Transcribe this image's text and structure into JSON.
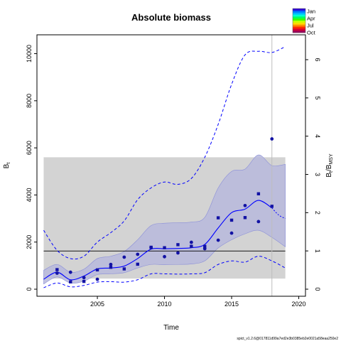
{
  "chart_data": {
    "type": "line",
    "title": "Absolute biomass",
    "xlabel": "Time",
    "ylabel_left": "B_t",
    "ylabel_right": "B_t/B_MSY",
    "xlim": [
      2000.5,
      2020.5
    ],
    "ylim_left": [
      -300,
      10800
    ],
    "ylim_right": [
      -0.185,
      6.65
    ],
    "x_ticks": [
      "2005",
      "2010",
      "2015",
      "2020"
    ],
    "y_ticks_left": [
      "0",
      "2000",
      "4000",
      "6000",
      "8000",
      "10000"
    ],
    "y_ticks_right": [
      "0",
      "1",
      "2",
      "3",
      "4",
      "5",
      "6"
    ],
    "bmsy_band": {
      "x_start": 2001,
      "x_end": 2019,
      "y_low": 450,
      "y_high": 5600
    },
    "bmsy_line": 1620,
    "forecast_start": 2018,
    "ci_fill_color": "#b7b8dc",
    "line_color": "#0000ff",
    "median": {
      "x": [
        2001,
        2002,
        2003,
        2004,
        2005,
        2006,
        2007,
        2008,
        2009,
        2010,
        2011,
        2012,
        2013,
        2014,
        2015,
        2016,
        2017,
        2018
      ],
      "y": [
        420,
        720,
        400,
        560,
        860,
        900,
        980,
        1300,
        1700,
        1720,
        1730,
        1760,
        1900,
        2600,
        3250,
        3400,
        3770,
        3450
      ]
    },
    "median_forecast": {
      "x": [
        2018,
        2018.5,
        2019
      ],
      "y": [
        3450,
        3150,
        3000
      ]
    },
    "ci_inner": {
      "lower": [
        220,
        520,
        260,
        340,
        620,
        650,
        700,
        900,
        1050,
        1040,
        1050,
        1070,
        1200,
        1750,
        2100,
        2350,
        2500,
        2200,
        1800
      ],
      "upper": [
        800,
        1050,
        720,
        850,
        1300,
        1400,
        1600,
        2100,
        2700,
        2800,
        2820,
        2850,
        3050,
        4300,
        5000,
        5100,
        5700,
        5250,
        5300
      ]
    },
    "ci_outer": {
      "x": [
        2001,
        2002,
        2003,
        2004,
        2005,
        2006,
        2007,
        2008,
        2009,
        2010,
        2011,
        2012,
        2013,
        2014,
        2015,
        2016,
        2017,
        2018,
        2019
      ],
      "lower": [
        60,
        260,
        100,
        160,
        300,
        320,
        300,
        400,
        650,
        650,
        640,
        650,
        700,
        1050,
        1200,
        1150,
        1400,
        1200,
        900
      ],
      "upper": [
        2500,
        1650,
        1300,
        1400,
        2000,
        2400,
        2900,
        3800,
        4300,
        4550,
        4450,
        4700,
        5600,
        7000,
        8700,
        9950,
        10100,
        10050,
        10300
      ]
    },
    "observations": {
      "series_1": {
        "marker": "circle",
        "x": [
          2002,
          2003,
          2004,
          2005,
          2006,
          2007,
          2008,
          2009,
          2010,
          2011,
          2012,
          2013,
          2014,
          2015,
          2016,
          2017,
          2018
        ],
        "y": [
          680,
          720,
          490,
          420,
          1050,
          1360,
          1480,
          1760,
          1380,
          1540,
          1990,
          1720,
          2080,
          2380,
          3550,
          2870,
          6380
        ]
      },
      "series_2": {
        "marker": "square",
        "x": [
          2002,
          2003,
          2004,
          2005,
          2006,
          2007,
          2008,
          2009,
          2010,
          2011,
          2012,
          2013,
          2014,
          2015,
          2016,
          2017,
          2018
        ],
        "y": [
          830,
          310,
          330,
          820,
          930,
          860,
          1060,
          1780,
          1760,
          1890,
          1820,
          1820,
          3030,
          2930,
          3040,
          4050,
          3520
        ]
      }
    },
    "legend": {
      "position": "top-right",
      "labels": [
        "Jan",
        "Apr",
        "Jul",
        "Oct"
      ],
      "colors": [
        "#2b00d8",
        "#0070ff",
        "#00b8ff",
        "#00ffd4",
        "#00ff60",
        "#3cff00",
        "#c4ff00",
        "#ffdc00",
        "#ff8a00",
        "#ff2a00",
        "#d80030",
        "#9a005a"
      ]
    },
    "footer_text": "spict_v1.2.6@017811d99a7ed2e3b0385eb2e0021a58eaa250e2"
  }
}
